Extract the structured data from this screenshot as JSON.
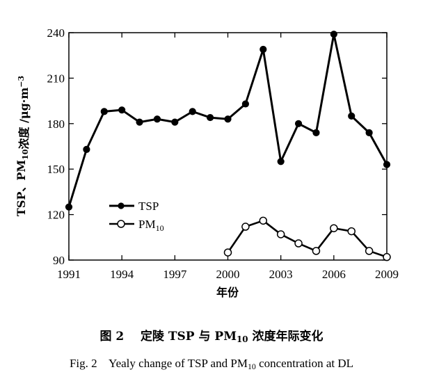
{
  "chart_data": {
    "type": "line",
    "x": [
      1991,
      1992,
      1993,
      1994,
      1995,
      1996,
      1997,
      1998,
      1999,
      2000,
      2001,
      2002,
      2003,
      2004,
      2005,
      2006,
      2007,
      2008,
      2009
    ],
    "series": [
      {
        "name": "TSP",
        "marker": "filled-circle",
        "values": [
          125,
          163,
          188,
          189,
          181,
          183,
          181,
          188,
          184,
          183,
          193,
          229,
          155,
          180,
          174,
          239,
          185,
          174,
          153
        ]
      },
      {
        "name": "PM10",
        "marker": "open-circle",
        "values": [
          null,
          null,
          null,
          null,
          null,
          null,
          null,
          null,
          null,
          95,
          112,
          116,
          107,
          101,
          96,
          111,
          109,
          96,
          92
        ]
      }
    ],
    "xlim": [
      1991,
      2009
    ],
    "ylim": [
      90,
      240
    ],
    "xticks": [
      1991,
      1994,
      1997,
      2000,
      2003,
      2006,
      2009
    ],
    "yticks": [
      90,
      120,
      150,
      180,
      210,
      240
    ],
    "xlabel": "年份",
    "ylabel": "TSP、PM10浓度 /μg·m−3",
    "legend_position": "lower-left",
    "grid": false,
    "line_color": "#000000"
  },
  "caption": {
    "cn_prefix": "图 2",
    "cn_text": "定陵 TSP 与 PM10 浓度年际变化",
    "en_prefix": "Fig. 2",
    "en_text": "Yealy change of TSP and PM10 concentration at DL"
  }
}
